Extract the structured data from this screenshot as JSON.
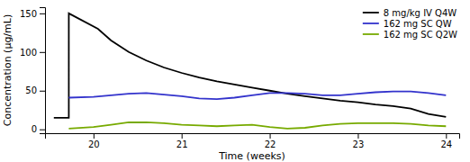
{
  "chart_data": {
    "type": "line",
    "xlabel": "Time (weeks)",
    "ylabel": "Concentration (µg/mL)",
    "xlim": [
      19.45,
      24.15
    ],
    "ylim": [
      -5,
      158
    ],
    "xticks": [
      20,
      21,
      22,
      23,
      24
    ],
    "yticks": [
      0,
      50,
      100,
      150
    ],
    "grid": false,
    "legend": "upper right",
    "series": [
      {
        "name": "8 mg/kg IV Q4W",
        "color": "#000000",
        "x": [
          19.55,
          19.72,
          19.72,
          20.05,
          20.2,
          20.4,
          20.6,
          20.8,
          21.0,
          21.2,
          21.4,
          21.6,
          21.8,
          22.0,
          22.2,
          22.4,
          22.6,
          22.8,
          23.0,
          23.2,
          23.4,
          23.6,
          23.8,
          24.0
        ],
        "values": [
          15,
          15,
          150,
          130,
          115,
          100,
          89,
          80,
          73,
          67,
          62,
          58,
          54,
          50,
          46,
          43,
          40,
          37,
          35,
          32,
          30,
          27,
          20,
          16
        ]
      },
      {
        "name": "162 mg SC QW",
        "color": "#3333cc",
        "x": [
          19.72,
          20.0,
          20.2,
          20.4,
          20.6,
          20.8,
          21.0,
          21.2,
          21.4,
          21.6,
          21.8,
          22.0,
          22.2,
          22.4,
          22.6,
          22.8,
          23.0,
          23.2,
          23.4,
          23.6,
          23.8,
          24.0
        ],
        "values": [
          41,
          42,
          44,
          46,
          47,
          45,
          43,
          40,
          39,
          41,
          44,
          47,
          47,
          46,
          44,
          44,
          46,
          48,
          49,
          49,
          47,
          44
        ]
      },
      {
        "name": "162 mg SC Q2W",
        "color": "#77aa00",
        "x": [
          19.72,
          20.0,
          20.2,
          20.4,
          20.6,
          20.8,
          21.0,
          21.2,
          21.4,
          21.6,
          21.8,
          22.0,
          22.2,
          22.4,
          22.6,
          22.8,
          23.0,
          23.2,
          23.4,
          23.6,
          23.8,
          24.0
        ],
        "values": [
          1,
          3,
          6,
          9,
          9,
          8,
          6,
          5,
          4,
          5,
          6,
          3,
          1,
          2,
          5,
          7,
          8,
          8,
          8,
          7,
          5,
          4
        ]
      }
    ]
  }
}
